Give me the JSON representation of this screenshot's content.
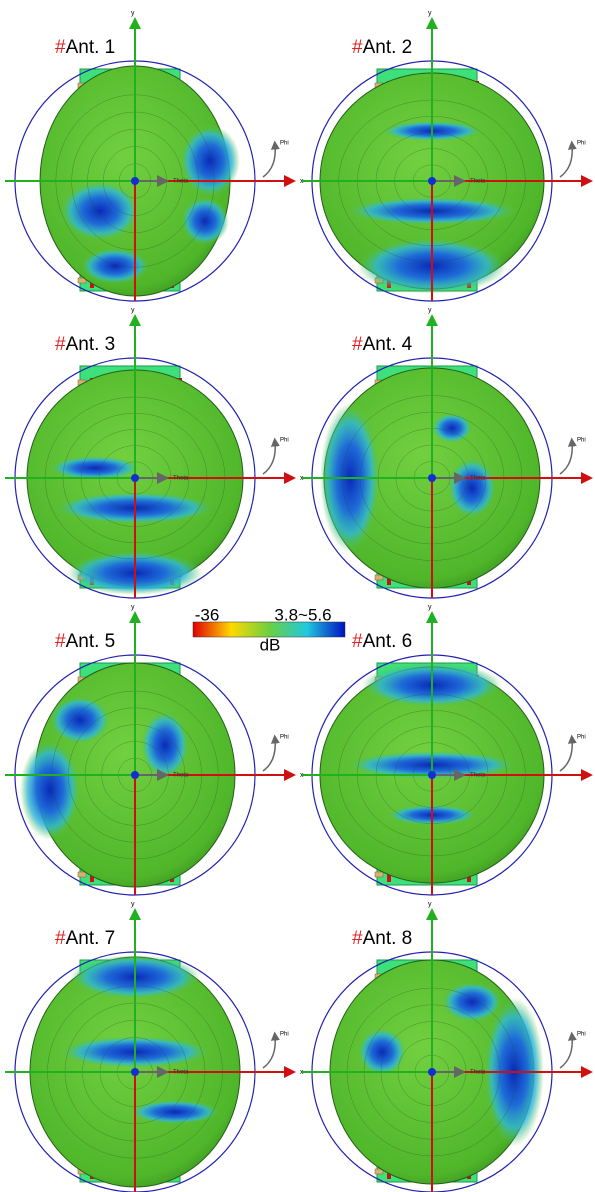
{
  "panels": [
    {
      "prefix": "#",
      "name": "Ant. 1"
    },
    {
      "prefix": "#",
      "name": "Ant. 2"
    },
    {
      "prefix": "#",
      "name": "Ant. 3"
    },
    {
      "prefix": "#",
      "name": "Ant. 4"
    },
    {
      "prefix": "#",
      "name": "Ant. 5"
    },
    {
      "prefix": "#",
      "name": "Ant. 6"
    },
    {
      "prefix": "#",
      "name": "Ant. 7"
    },
    {
      "prefix": "#",
      "name": "Ant. 8"
    }
  ],
  "axis_labels": {
    "x": "x",
    "y": "y",
    "phi": "Phi",
    "theta": "Theta"
  },
  "colorbar": {
    "min_label": "-36",
    "max_label": "3.8~5.6",
    "unit": "dB"
  }
}
